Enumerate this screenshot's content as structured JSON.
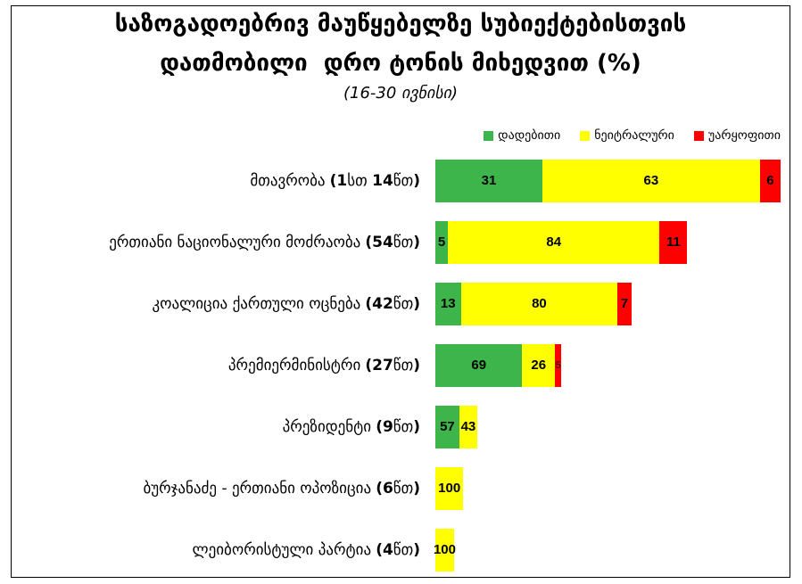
{
  "chart_data": {
    "type": "bar",
    "orientation": "horizontal",
    "stacked": true,
    "title_lines": [
      "საზოგადოებრივ მაუწყებელზე სუბიექტებისთვის",
      "დათმობილი  დრო ტონის მიხედვით (%)"
    ],
    "subtitle": "(16-30 ივნისი)",
    "categories": [
      "მთავრობა",
      "ერთიანი ნაციონალური მოძრაობა",
      "კოალიცია ქართული ოცნება",
      "პრემიერმინისტრი",
      "პრეზიდენტი",
      "ბურჯანაძე - ერთიანი ოპოზიცია",
      "ლეიბორისტული პარტია"
    ],
    "durations": [
      "(1სთ 14წთ)",
      "(54წთ)",
      "(42წთ)",
      "(27წთ)",
      "(9წთ)",
      "(6წთ)",
      "(4წთ)"
    ],
    "duration_minutes": [
      74,
      54,
      42,
      27,
      9,
      6,
      4
    ],
    "series": [
      {
        "name": "დადებითი",
        "color": "#3db54a",
        "values": [
          31,
          5,
          13,
          69,
          57,
          0,
          0
        ]
      },
      {
        "name": "ნეიტრალური",
        "color": "#ffff00",
        "values": [
          63,
          84,
          80,
          26,
          43,
          100,
          100
        ]
      },
      {
        "name": "უარყოფითი",
        "color": "#ff0000",
        "values": [
          6,
          11,
          7,
          5,
          0,
          0,
          0
        ]
      }
    ],
    "legend": "top-right",
    "grid": false,
    "axes_visible": false
  }
}
